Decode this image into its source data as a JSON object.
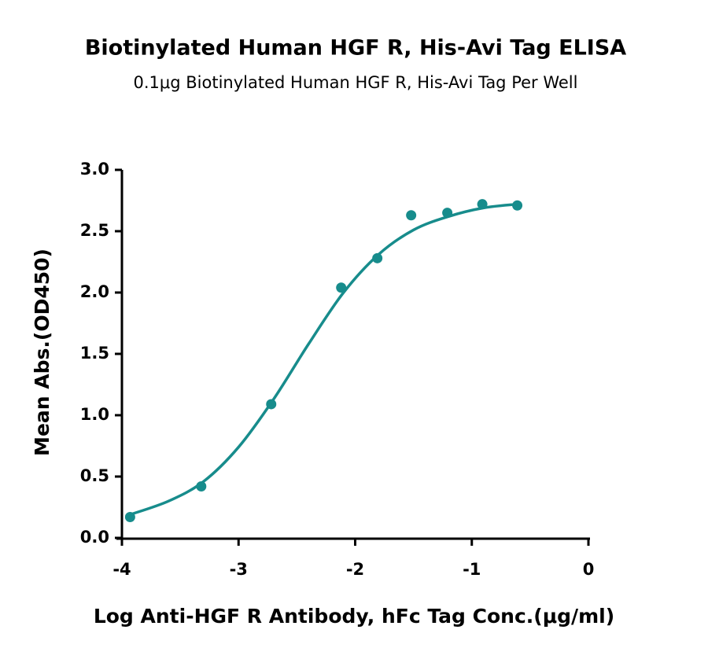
{
  "chart_data": {
    "type": "scatter",
    "title": "Biotinylated Human HGF R, His-Avi Tag ELISA",
    "subtitle": "0.1μg Biotinylated Human HGF R, His-Avi Tag Per Well",
    "x_label": "Log Anti-HGF R Antibody, hFc Tag Conc.(μg/ml)",
    "y_label": "Mean Abs.(OD450)",
    "xlim": [
      -4,
      0
    ],
    "xticks": [
      -4,
      -3,
      -2,
      -1,
      0
    ],
    "ylim": [
      0,
      3
    ],
    "yticks": [
      {
        "value": 0,
        "label": "0.0"
      },
      {
        "value": 0.5,
        "label": "0.5"
      },
      {
        "value": 1,
        "label": "1.0"
      },
      {
        "value": 1.5,
        "label": "1.5"
      },
      {
        "value": 2,
        "label": "2.0"
      },
      {
        "value": 2.5,
        "label": "2.5"
      },
      {
        "value": 3,
        "label": "3.0"
      }
    ],
    "grid": false,
    "series": [
      {
        "kind": "points",
        "color": "#178c8c",
        "x": [
          -3.93,
          -3.32,
          -2.72,
          -2.12,
          -1.81,
          -1.52,
          -1.21,
          -0.91,
          -0.61
        ],
        "values": [
          0.17,
          0.42,
          1.09,
          2.04,
          2.28,
          2.63,
          2.65,
          2.72,
          2.71
        ]
      },
      {
        "kind": "fit",
        "color": "#178c8c",
        "x": [
          -3.93,
          -3.6,
          -3.3,
          -3.0,
          -2.7,
          -2.4,
          -2.1,
          -1.8,
          -1.5,
          -1.2,
          -0.9,
          -0.61
        ],
        "values": [
          0.19,
          0.3,
          0.46,
          0.74,
          1.13,
          1.58,
          2.0,
          2.31,
          2.51,
          2.62,
          2.69,
          2.72
        ]
      }
    ]
  }
}
